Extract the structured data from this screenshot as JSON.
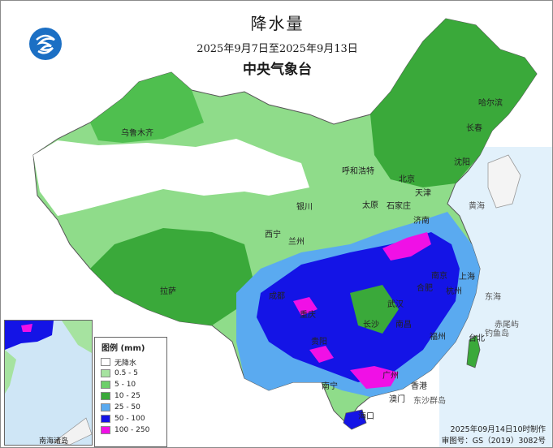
{
  "title": "降水量",
  "date_range": "2025年9月7日至2025年9月13日",
  "agency": "中央气象台",
  "legend": {
    "title": "图例 (mm)",
    "items": [
      {
        "label": "无降水",
        "color": "#ffffff"
      },
      {
        "label": "0.5 - 5",
        "color": "#a6e3a0"
      },
      {
        "label": "5 - 10",
        "color": "#6ccf6a"
      },
      {
        "label": "10 - 25",
        "color": "#3aa93a"
      },
      {
        "label": "25 - 50",
        "color": "#5aaaf0"
      },
      {
        "label": "50 - 100",
        "color": "#1414e6"
      },
      {
        "label": "100 - 250",
        "color": "#f010e6"
      }
    ]
  },
  "cities": [
    "乌鲁木齐",
    "哈尔滨",
    "长春",
    "沈阳",
    "呼和浩特",
    "北京",
    "天津",
    "银川",
    "太原",
    "石家庄",
    "济南",
    "西宁",
    "兰州",
    "拉萨",
    "成都",
    "武汉",
    "长沙",
    "南昌",
    "福州",
    "台北",
    "广州",
    "香港",
    "澳门",
    "海口",
    "南宁",
    "贵阳",
    "上海",
    "杭州",
    "南京",
    "合肥",
    "重庆"
  ],
  "ocean_labels": [
    "黄海",
    "东海",
    "赤尾屿",
    "钓鱼岛",
    "东沙群岛"
  ],
  "inset_label": "南海诸岛",
  "footer": {
    "made": "2025年09月14日10时制作",
    "approval": "审图号：GS（2019）3082号"
  }
}
